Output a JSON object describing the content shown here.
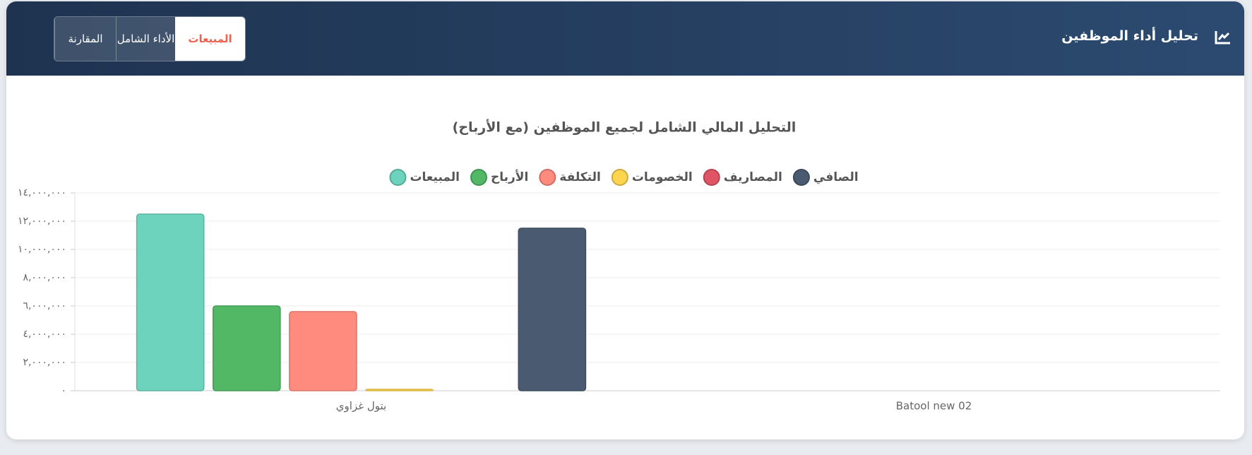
{
  "header": {
    "title": "تحليل أداء الموظفين",
    "tabs": [
      "المبيعات",
      "الأداء الشامل",
      "المقارنة"
    ]
  },
  "chart_data": {
    "type": "bar",
    "title": "التحليل المالي الشامل لجميع الموظفين (مع الأرباح)",
    "categories": [
      "بتول غزاوي",
      "Batool new 02"
    ],
    "series": [
      {
        "name": "المبيعات",
        "color": "#6dd3bd",
        "values": [
          12500000,
          0
        ]
      },
      {
        "name": "الأرباح",
        "color": "#52b866",
        "values": [
          6000000,
          0
        ]
      },
      {
        "name": "التكلفة",
        "color": "#ff8b7e",
        "values": [
          5600000,
          0
        ]
      },
      {
        "name": "الخصومات",
        "color": "#ffd54f",
        "values": [
          100000,
          0
        ]
      },
      {
        "name": "المصاريف",
        "color": "#e05565",
        "values": [
          0,
          0
        ]
      },
      {
        "name": "الصافي",
        "color": "#4a5a70",
        "values": [
          11500000,
          0
        ]
      }
    ],
    "ylim": [
      0,
      14000000
    ],
    "yticks": [
      {
        "value": 0,
        "label": "٠"
      },
      {
        "value": 2000000,
        "label": "٢,٠٠٠,٠٠٠"
      },
      {
        "value": 4000000,
        "label": "٤,٠٠٠,٠٠٠"
      },
      {
        "value": 6000000,
        "label": "٦,٠٠٠,٠٠٠"
      },
      {
        "value": 8000000,
        "label": "٨,٠٠٠,٠٠٠"
      },
      {
        "value": 10000000,
        "label": "١٠,٠٠٠,٠٠٠"
      },
      {
        "value": 12000000,
        "label": "١٢,٠٠٠,٠٠٠"
      },
      {
        "value": 14000000,
        "label": "١٤,٠٠٠,٠٠٠"
      }
    ],
    "grid": true
  }
}
